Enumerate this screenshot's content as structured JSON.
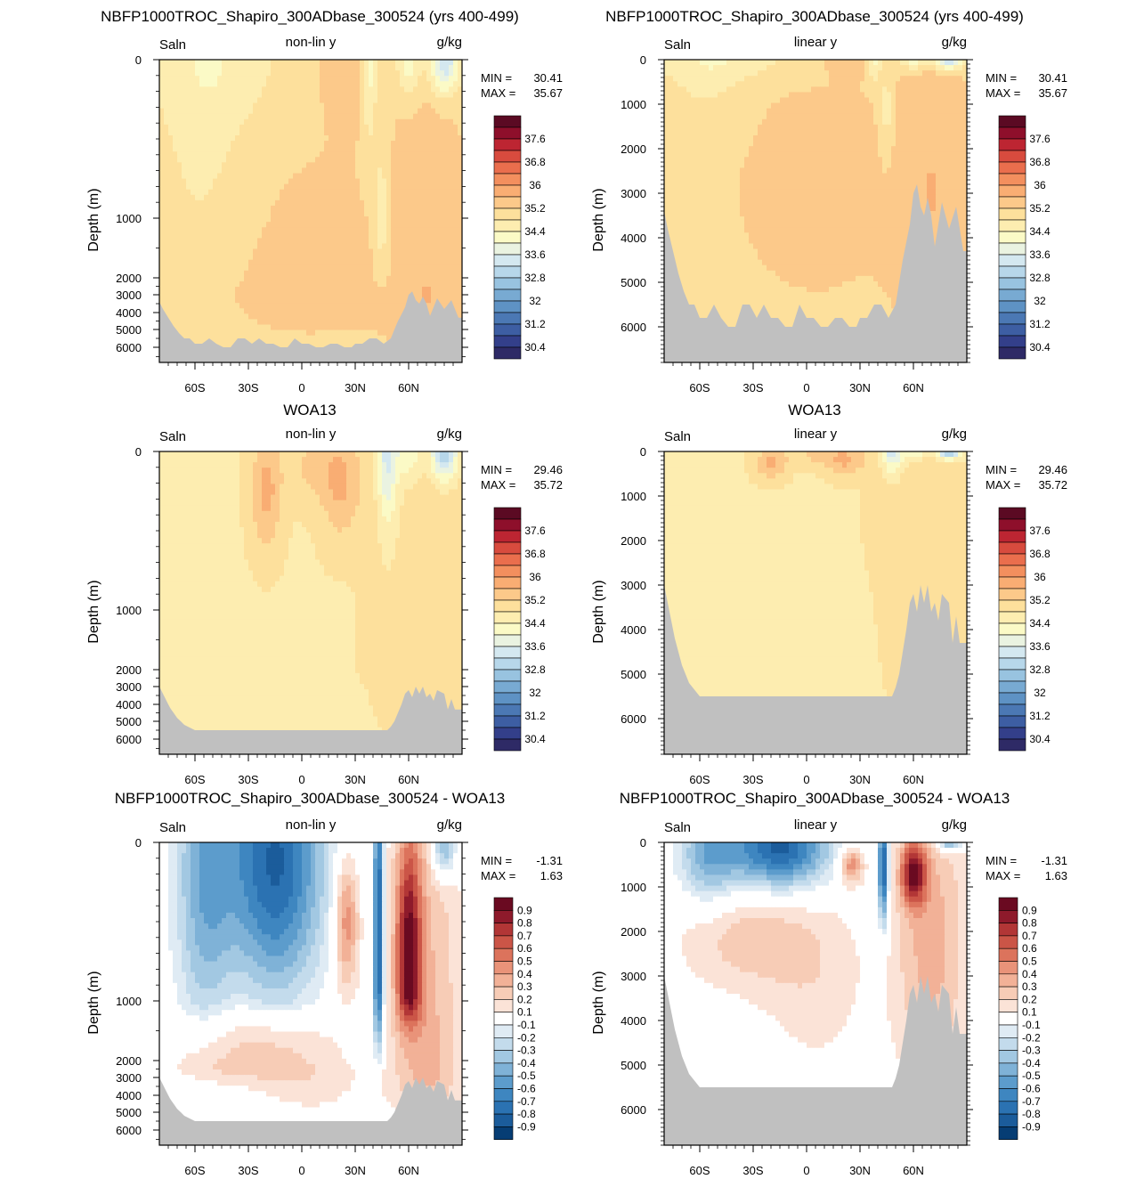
{
  "figure": {
    "rows": [
      {
        "title": "NBFP1000TROC_Shapiro_300ADbase_300524 (yrs 400-499)",
        "field": "model",
        "min": "30.41",
        "max": "35.67"
      },
      {
        "title": "WOA13",
        "field": "obs",
        "min": "29.46",
        "max": "35.72"
      },
      {
        "title": "NBFP1000TROC_Shapiro_300ADbase_300524 - WOA13",
        "field": "diff",
        "min": "-1.31",
        "max": "1.63"
      }
    ],
    "columns": [
      {
        "mode": "non-lin y",
        "yticks": [
          "0",
          "1000",
          "2000",
          "3000",
          "4000",
          "5000",
          "6000"
        ]
      },
      {
        "mode": "linear y",
        "yticks": [
          "0",
          "1000",
          "2000",
          "3000",
          "4000",
          "5000",
          "6000"
        ]
      }
    ],
    "variable": "Saln",
    "units": "g/kg",
    "ylabel": "Depth (m)",
    "xticks": [
      "60S",
      "30S",
      "0",
      "30N",
      "60N"
    ],
    "min_label": "MIN =",
    "max_label": "MAX =",
    "colorbar_saln": [
      "37.6",
      "36.8",
      "36",
      "35.2",
      "34.4",
      "33.6",
      "32.8",
      "32",
      "31.2",
      "30.4"
    ],
    "colorbar_diff": [
      "0.9",
      "0.8",
      "0.7",
      "0.6",
      "0.5",
      "0.4",
      "0.3",
      "0.2",
      "0.1",
      "-0.1",
      "-0.2",
      "-0.3",
      "-0.4",
      "-0.5",
      "-0.6",
      "-0.7",
      "-0.8",
      "-0.9"
    ],
    "colors": {
      "land": "#c0c0c0",
      "saln_scale": [
        "#2e2a66",
        "#333f8a",
        "#3d5ea3",
        "#4b78b4",
        "#5e92c4",
        "#78aad2",
        "#98c3e0",
        "#b7d7ea",
        "#d4e8f0",
        "#eaf3e1",
        "#fbfac6",
        "#fdedb0",
        "#fde09c",
        "#fcc98a",
        "#f9ad73",
        "#f38f5e",
        "#ea6e4d",
        "#d84b3e",
        "#bd2532",
        "#8e0f2b",
        "#5b0a23"
      ],
      "diff_scale": [
        "#063d74",
        "#1b5c9b",
        "#2b72b2",
        "#3e86c0",
        "#5c9ccc",
        "#7fb2d7",
        "#a2c8e2",
        "#c3dbec",
        "#dfebf4",
        "#ffffff",
        "#fbe3d7",
        "#f7ccb6",
        "#f2b197",
        "#e99379",
        "#dc735c",
        "#cb5547",
        "#b23636",
        "#8e1a2b",
        "#6a0a21"
      ]
    }
  },
  "chart_data": [
    {
      "type": "heatmap",
      "panel": "model-nonlinear",
      "title": "NBFP1000TROC_Shapiro_300ADbase_300524 (yrs 400-499)",
      "subtitle": "non-lin y",
      "variable": "Saln",
      "units": "g/kg",
      "xlabel": "",
      "ylabel": "Depth (m)",
      "x_ticks": [
        "60S",
        "30S",
        "0",
        "30N",
        "60N"
      ],
      "y_ticks": [
        0,
        1000,
        2000,
        3000,
        4000,
        5000,
        6000
      ],
      "min": 30.41,
      "max": 35.67
    },
    {
      "type": "heatmap",
      "panel": "model-linear",
      "title": "NBFP1000TROC_Shapiro_300ADbase_300524 (yrs 400-499)",
      "subtitle": "linear y",
      "variable": "Saln",
      "units": "g/kg",
      "ylabel": "Depth (m)",
      "x_ticks": [
        "60S",
        "30S",
        "0",
        "30N",
        "60N"
      ],
      "y_ticks": [
        0,
        1000,
        2000,
        3000,
        4000,
        5000,
        6000
      ],
      "min": 30.41,
      "max": 35.67
    },
    {
      "type": "heatmap",
      "panel": "obs-nonlinear",
      "title": "WOA13",
      "subtitle": "non-lin y",
      "variable": "Saln",
      "units": "g/kg",
      "ylabel": "Depth (m)",
      "x_ticks": [
        "60S",
        "30S",
        "0",
        "30N",
        "60N"
      ],
      "y_ticks": [
        0,
        1000,
        2000,
        3000,
        4000,
        5000,
        6000
      ],
      "min": 29.46,
      "max": 35.72
    },
    {
      "type": "heatmap",
      "panel": "obs-linear",
      "title": "WOA13",
      "subtitle": "linear y",
      "variable": "Saln",
      "units": "g/kg",
      "ylabel": "Depth (m)",
      "x_ticks": [
        "60S",
        "30S",
        "0",
        "30N",
        "60N"
      ],
      "y_ticks": [
        0,
        1000,
        2000,
        3000,
        4000,
        5000,
        6000
      ],
      "min": 29.46,
      "max": 35.72
    },
    {
      "type": "heatmap",
      "panel": "diff-nonlinear",
      "title": "NBFP1000TROC_Shapiro_300ADbase_300524 - WOA13",
      "subtitle": "non-lin y",
      "variable": "Saln",
      "units": "g/kg",
      "ylabel": "Depth (m)",
      "x_ticks": [
        "60S",
        "30S",
        "0",
        "30N",
        "60N"
      ],
      "y_ticks": [
        0,
        1000,
        2000,
        3000,
        4000,
        5000,
        6000
      ],
      "min": -1.31,
      "max": 1.63
    },
    {
      "type": "heatmap",
      "panel": "diff-linear",
      "title": "NBFP1000TROC_Shapiro_300ADbase_300524 - WOA13",
      "subtitle": "linear y",
      "variable": "Saln",
      "units": "g/kg",
      "ylabel": "Depth (m)",
      "x_ticks": [
        "60S",
        "30S",
        "0",
        "30N",
        "60N"
      ],
      "y_ticks": [
        0,
        1000,
        2000,
        3000,
        4000,
        5000,
        6000
      ],
      "min": -1.31,
      "max": 1.63
    }
  ]
}
